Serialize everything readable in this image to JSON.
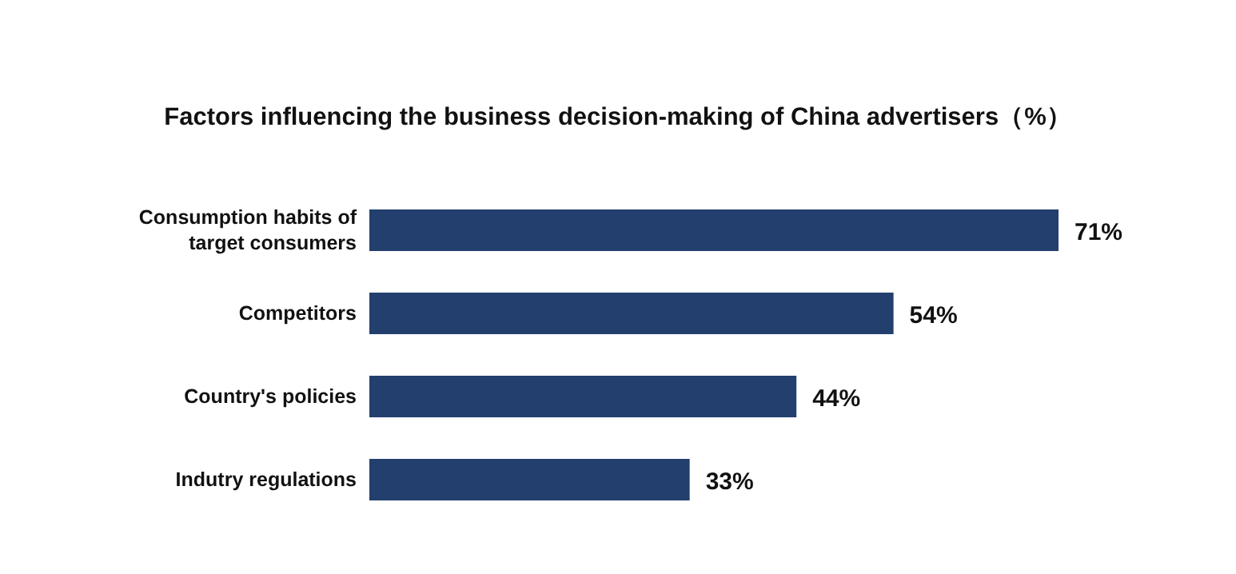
{
  "chart_data": {
    "type": "bar",
    "orientation": "horizontal",
    "title": "Factors influencing the business decision-making of China advertisers（%）",
    "categories": [
      "Consumption habits of\ntarget consumers",
      "Competitors",
      "Country's policies",
      "Indutry regulations"
    ],
    "values": [
      71,
      54,
      44,
      33
    ],
    "color": "#233f6e",
    "value_labels": [
      "71%",
      "54%",
      "44%",
      "33%"
    ]
  }
}
